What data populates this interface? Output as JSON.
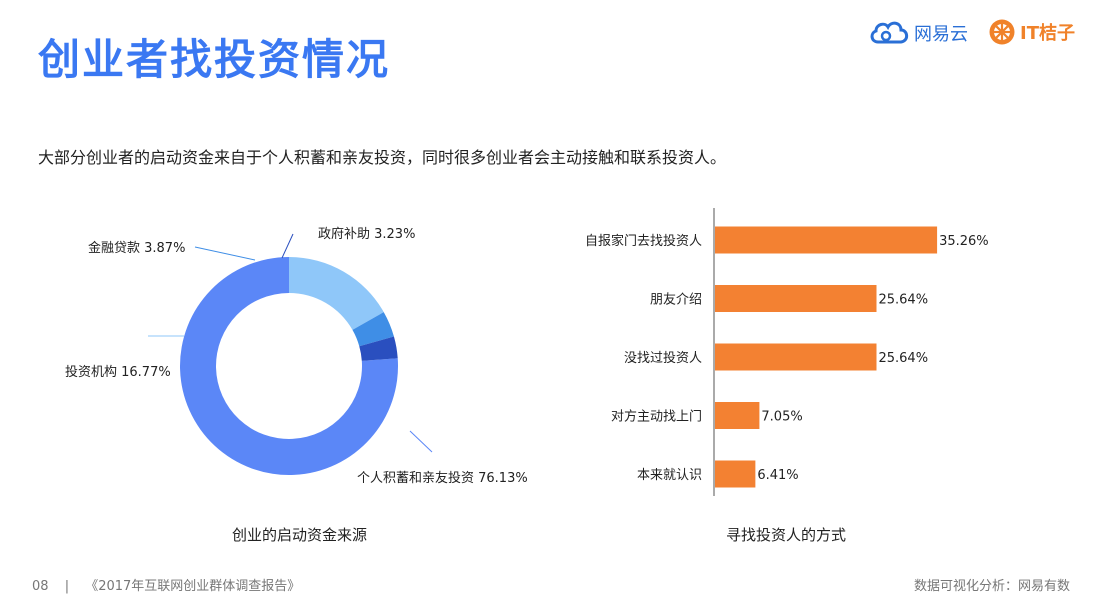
{
  "header": {
    "title": "创业者找投资情况",
    "brand_left": "网易云",
    "brand_right": "IT桔子"
  },
  "subtitle": "大部分创业者的启动资金来自于个人积蓄和亲友投资，同时很多创业者会主动接触和联系投资人。",
  "colors": {
    "title": "#3a78f2",
    "donut": [
      "#5b87f7",
      "#8fc7f9",
      "#3f8ee6",
      "#2a4fbf"
    ],
    "bar": "#f38132"
  },
  "chart_data": [
    {
      "type": "pie",
      "variant": "donut",
      "title": "创业的启动资金来源",
      "series": [
        {
          "label": "个人积蓄和亲友投资",
          "value": 76.13,
          "value_label": "76.13%"
        },
        {
          "label": "投资机构",
          "value": 16.77,
          "value_label": "16.77%"
        },
        {
          "label": "金融贷款",
          "value": 3.87,
          "value_label": "3.87%"
        },
        {
          "label": "政府补助",
          "value": 3.23,
          "value_label": "3.23%"
        }
      ]
    },
    {
      "type": "bar",
      "orientation": "horizontal",
      "title": "寻找投资人的方式",
      "categories": [
        "自报家门去找投资人",
        "朋友介绍",
        "没找过投资人",
        "对方主动找上门",
        "本来就认识"
      ],
      "values": [
        35.26,
        25.64,
        25.64,
        7.05,
        6.41
      ],
      "value_labels": [
        "35.26%",
        "25.64%",
        "25.64%",
        "7.05%",
        "6.41%"
      ],
      "xlim": [
        0,
        40
      ]
    }
  ],
  "footer": {
    "page_number": "08",
    "separator": "|",
    "report_title": "《2017年互联网创业群体调查报告》",
    "source": "数据可视化分析：网易有数"
  }
}
